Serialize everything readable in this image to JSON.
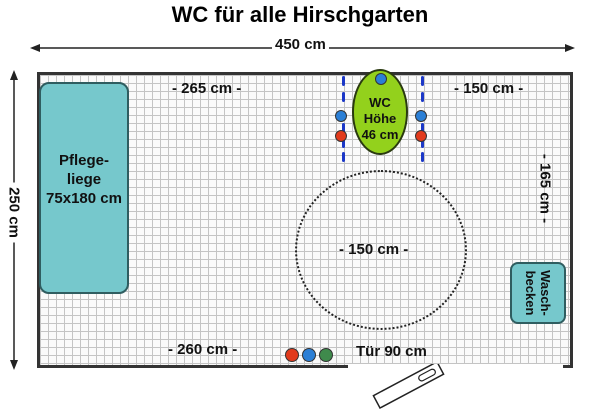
{
  "title": "WC für alle Hirschgarten",
  "dimensions": {
    "top_width": "450 cm",
    "left_height": "250 cm",
    "top_left_segment": "- 265 cm -",
    "top_right_segment": "- 150 cm -",
    "right_segment": "- 165 cm -",
    "bottom_left_segment": "- 260 cm -",
    "turning_circle": "- 150 cm -",
    "door": "Tür 90 cm"
  },
  "fixtures": {
    "care_bed": "Pflege-\nliege\n75x180 cm",
    "wc": "WC\nHöhe\n46 cm",
    "sink": "Wasch-\nbecken"
  },
  "colors": {
    "fixture_teal": "#76c8cc",
    "wc_green": "#93d11c",
    "marker_blue": "#2b7fd6",
    "marker_red": "#e13a1c",
    "marker_green": "#3f8a4c",
    "rail_blue": "#1b37c7"
  }
}
